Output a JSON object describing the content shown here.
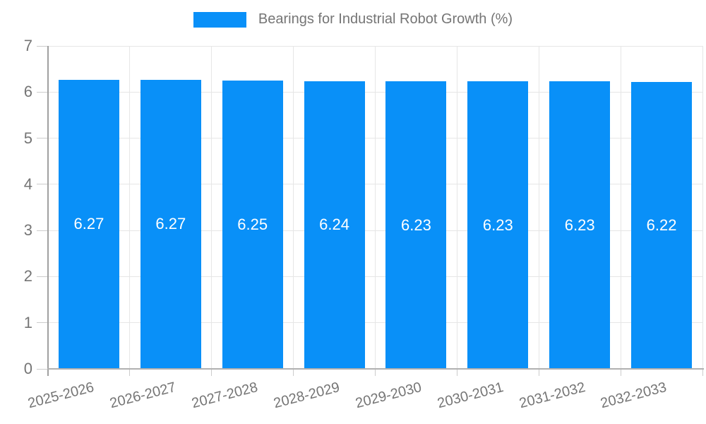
{
  "legend": {
    "label": "Bearings for Industrial Robot Growth (%)"
  },
  "chart_data": {
    "type": "bar",
    "title": "Bearings for Industrial Robot Growth (%)",
    "series_name": "Bearings for Industrial Robot Growth (%)",
    "categories": [
      "2025-2026",
      "2026-2027",
      "2027-2028",
      "2028-2029",
      "2029-2030",
      "2030-2031",
      "2031-2032",
      "2032-2033"
    ],
    "values": [
      6.27,
      6.27,
      6.25,
      6.24,
      6.23,
      6.23,
      6.23,
      6.22
    ],
    "value_labels": [
      "6.27",
      "6.27",
      "6.25",
      "6.24",
      "6.23",
      "6.23",
      "6.23",
      "6.22"
    ],
    "xlabel": "",
    "ylabel": "",
    "ylim": [
      0,
      7
    ],
    "yticks": [
      0,
      1,
      2,
      3,
      4,
      5,
      6,
      7
    ],
    "grid": true,
    "legend_position": "top-center",
    "x_tick_rotation_deg": -14.5,
    "colors": {
      "bar": "#0990f8",
      "bar_value_text": "#ffffff",
      "axis_text": "#757575",
      "legend_text": "#757575",
      "gridline": "#e6e6e6",
      "axis_line": "#a0a0a0",
      "baseline": "#b0b0b0",
      "tick": "#cccccc",
      "background": "#ffffff"
    }
  }
}
